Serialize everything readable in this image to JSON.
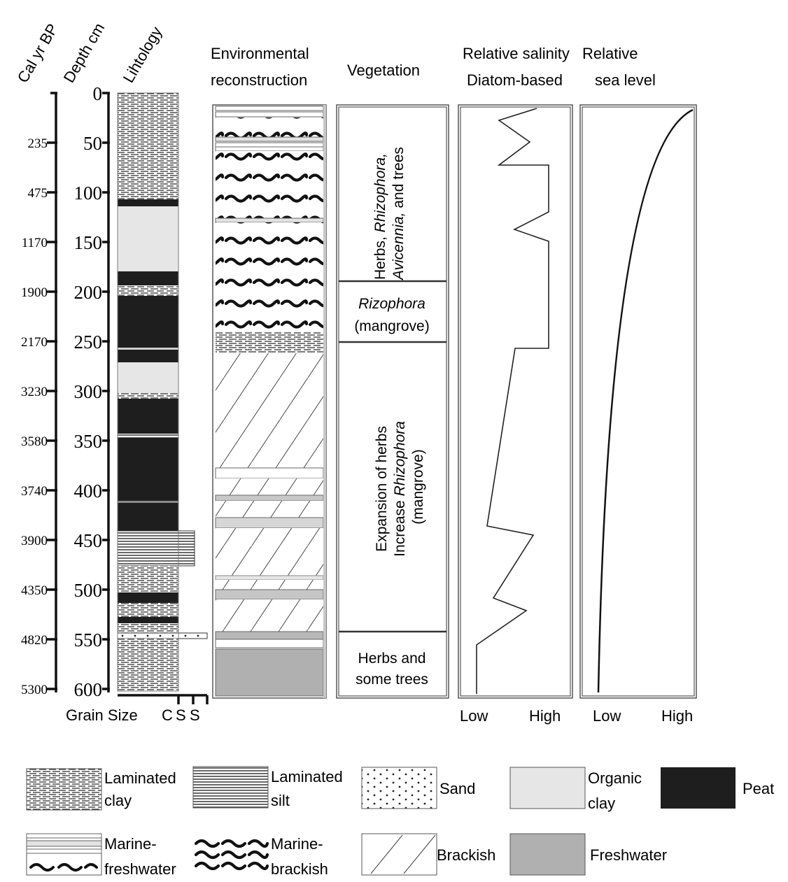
{
  "headers": {
    "age": "Cal yr BP",
    "depth": "Depth cm",
    "lithology": "Lihtology",
    "environment": [
      "Environmental",
      "reconstruction"
    ],
    "vegetation": "Vegetation",
    "salinity": [
      "Relative salinity",
      "Diatom-based"
    ],
    "sea_level": [
      "Relative",
      "sea level"
    ]
  },
  "age_ticks": [
    "235",
    "475",
    "1170",
    "1900",
    "2170",
    "3230",
    "3580",
    "3740",
    "3900",
    "4350",
    "4820",
    "5300"
  ],
  "depth_ticks": [
    "0",
    "50",
    "100",
    "150",
    "200",
    "250",
    "300",
    "350",
    "400",
    "450",
    "500",
    "550",
    "600"
  ],
  "grain_size": {
    "label": "Grain Size",
    "classes": [
      "C",
      "S",
      "S"
    ]
  },
  "vegetation_zones": {
    "zone1": {
      "prefix": "Herbs, ",
      "taxon1": "Rhizophora,",
      "taxon2": "Avicennia,",
      "suffix": " and trees"
    },
    "zone2": {
      "taxon": "Rizophora",
      "note": "(mangrove)"
    },
    "zone3": {
      "line1": "Expansion of herbs",
      "prefix": "Increase ",
      "taxon": "Rhizophora",
      "line3": "(mangrove)"
    },
    "zone4": [
      "Herbs and",
      "some trees"
    ]
  },
  "salinity_axis": {
    "low": "Low",
    "high": "High"
  },
  "sea_level_axis": {
    "low": "Low",
    "high": "High"
  },
  "legend": {
    "laminated_clay": [
      "Laminated",
      "clay"
    ],
    "laminated_silt": [
      "Laminated",
      "silt"
    ],
    "sand": "Sand",
    "organic_clay": [
      "Organic",
      "clay"
    ],
    "peat": "Peat",
    "marine_freshwater": [
      "Marine-",
      "freshwater"
    ],
    "marine_brackish": [
      "Marine-",
      "brackish"
    ],
    "brackish": "Brackish",
    "freshwater": "Freshwater"
  },
  "colors": {
    "peat": "#1e1e1e",
    "organic_clay": "#e6e6e6",
    "freshwater": "#b0b0b0",
    "line": "#333333"
  }
}
